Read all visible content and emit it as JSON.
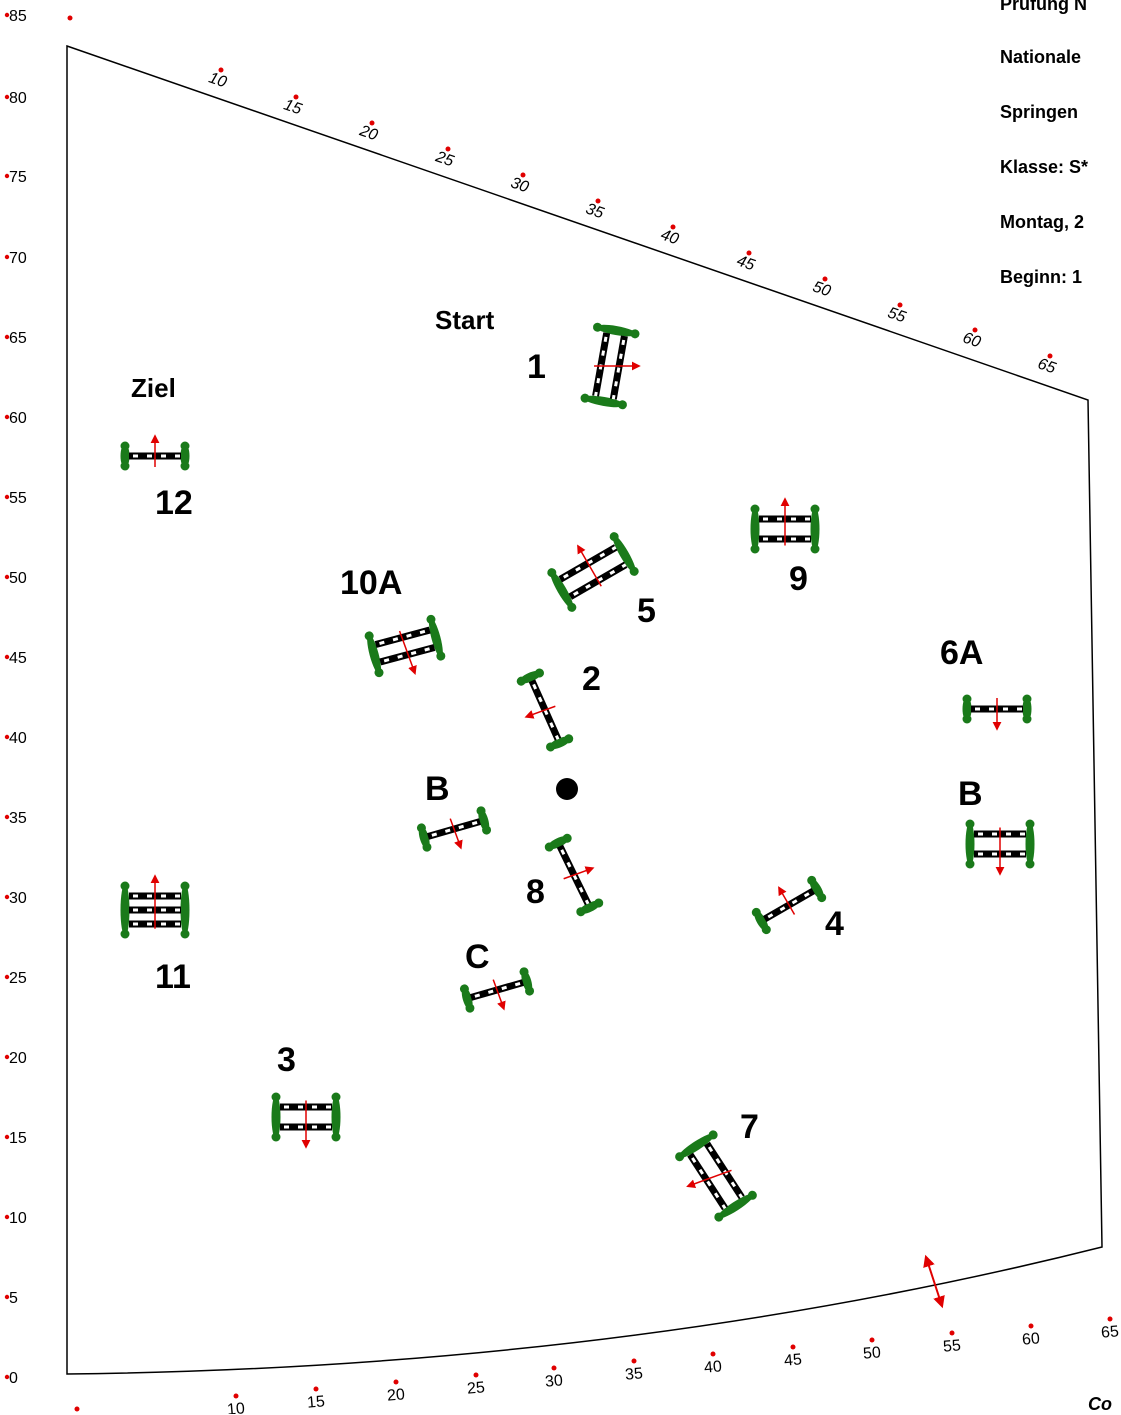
{
  "header": {
    "lines": [
      "Prüfung N",
      "Nationale",
      "Springen",
      "Klasse: S*",
      "Montag, 2",
      "Beginn: 1"
    ]
  },
  "footer": {
    "text": "Co"
  },
  "labels": {
    "start": "Start",
    "finish": "Ziel",
    "center_marker": "center-dot"
  },
  "left_scale": [
    "85",
    "80",
    "75",
    "70",
    "65",
    "60",
    "55",
    "50",
    "45",
    "40",
    "35",
    "30",
    "25",
    "20",
    "15",
    "10",
    "5",
    "0"
  ],
  "top_scale": [
    "10",
    "15",
    "20",
    "25",
    "30",
    "35",
    "40",
    "45",
    "50",
    "55",
    "60",
    "65"
  ],
  "bottom_scale": [
    "10",
    "15",
    "20",
    "25",
    "30",
    "35",
    "40",
    "45",
    "50",
    "55",
    "60",
    "65"
  ],
  "obstacles": [
    {
      "id": "1",
      "label": "1",
      "kind": "double"
    },
    {
      "id": "2",
      "label": "2",
      "kind": "single"
    },
    {
      "id": "3",
      "label": "3",
      "kind": "double"
    },
    {
      "id": "4",
      "label": "4",
      "kind": "single"
    },
    {
      "id": "5",
      "label": "5",
      "kind": "double"
    },
    {
      "id": "6A",
      "label": "6A",
      "kind": "single"
    },
    {
      "id": "6B",
      "label": "B",
      "kind": "double"
    },
    {
      "id": "7",
      "label": "7",
      "kind": "double"
    },
    {
      "id": "8",
      "label": "8",
      "kind": "single"
    },
    {
      "id": "9",
      "label": "9",
      "kind": "double"
    },
    {
      "id": "10A",
      "label": "10A",
      "kind": "double"
    },
    {
      "id": "10B",
      "label": "B",
      "kind": "single"
    },
    {
      "id": "10C",
      "label": "C",
      "kind": "single"
    },
    {
      "id": "11",
      "label": "11",
      "kind": "triple"
    },
    {
      "id": "12",
      "label": "12",
      "kind": "single"
    }
  ],
  "colors": {
    "pole": "#000000",
    "pole_stripe": "#ffffff",
    "wing": "#1a7a1a",
    "arrow": "#e00000",
    "arena": "#000000",
    "tick_dot": "#e00000"
  }
}
